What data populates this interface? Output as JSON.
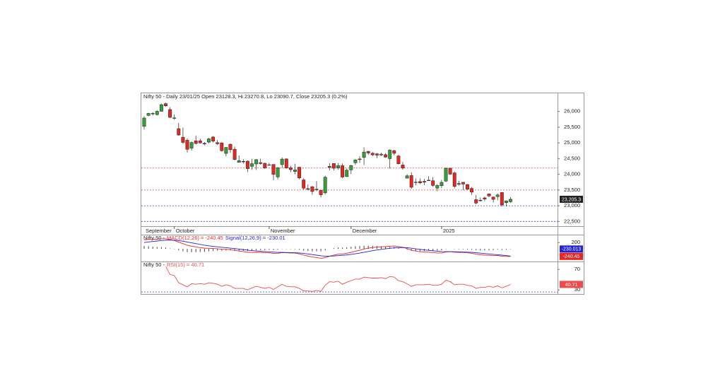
{
  "chart_data": [
    {
      "type": "candlestick",
      "title": "Nifty 50 - Daily 23/01/25 Open 23128.3, Hi 23270.8, Lo 23090.7, Close 23205.3 (0.2%)",
      "categories": [
        "September",
        null,
        null,
        null,
        null,
        null,
        null,
        "October",
        null,
        null,
        null,
        null,
        null,
        null,
        null,
        null,
        null,
        null,
        null,
        null,
        null,
        null,
        null,
        null,
        null,
        null,
        null,
        null,
        null,
        "November",
        null,
        null,
        null,
        null,
        null,
        null,
        null,
        null,
        null,
        null,
        null,
        null,
        null,
        null,
        null,
        null,
        null,
        null,
        "December",
        null,
        null,
        null,
        null,
        null,
        null,
        null,
        null,
        null,
        null,
        null,
        null,
        null,
        null,
        null,
        null,
        null,
        null,
        null,
        null,
        "2025",
        null,
        null,
        null,
        null,
        null,
        null,
        null,
        null,
        null,
        null,
        null,
        null,
        null,
        null,
        null,
        null
      ],
      "open": [
        25526,
        25873,
        25921,
        25900,
        26005,
        26248,
        26061,
        25788,
        25453,
        25181,
        25084,
        24832,
        25065,
        25067,
        24986,
        25024,
        25186,
        25008,
        24999,
        24665,
        24956,
        24798,
        24379,
        24413,
        24418,
        24252,
        24329,
        24372,
        24350,
        24302,
        24315,
        23916,
        24308,
        24490,
        24207,
        24087,
        24225,
        23822,
        23543,
        23605,
        23529,
        23488,
        23411,
        24253,
        24343,
        24204,
        24274,
        23927,
        24140,
        24367,
        24489,
        24539,
        24729,
        24671,
        24652,
        24614,
        24624,
        24498,
        24753,
        24584,
        24297,
        23877,
        23960,
        23739,
        23770,
        23775,
        23802,
        23796,
        23560,
        23638,
        23783,
        24196,
        24045,
        23679,
        23746,
        23675,
        23551,
        23195,
        23165,
        23250,
        23377,
        23277,
        23290,
        23421,
        23099,
        23128.3
      ],
      "high": [
        25849,
        25956,
        25978,
        26032,
        26250,
        26277,
        26135,
        25908,
        25640,
        25485,
        25143,
        25045,
        25234,
        25134,
        25028,
        25159,
        25213,
        25093,
        25020,
        24869,
        24978,
        24882,
        24604,
        24480,
        24440,
        24492,
        24484,
        24498,
        24372,
        24368,
        24316,
        24229,
        24537,
        24503,
        24276,
        24336,
        24242,
        23873,
        23675,
        23630,
        23780,
        23507,
        23956,
        24352,
        24344,
        24354,
        24345,
        24188,
        24302,
        24481,
        24574,
        24857,
        24751,
        24705,
        24677,
        24691,
        24675,
        24792,
        24781,
        24625,
        24394,
        24005,
        24066,
        23869,
        23867,
        23854,
        23938,
        23916,
        23689,
        23822,
        24226,
        24196,
        24089,
        23795,
        23752,
        23690,
        23596,
        23341,
        23264,
        23293,
        23392,
        23292,
        23391,
        23426,
        23169,
        23270.8
      ],
      "low": [
        25426,
        25847,
        25871,
        25872,
        25998,
        26151,
        25795,
        25739,
        25230,
        24966,
        24694,
        24756,
        24947,
        24980,
        24920,
        24980,
        25008,
        24930,
        24728,
        24567,
        24679,
        24445,
        24378,
        24341,
        24074,
        24140,
        24141,
        24307,
        24172,
        24280,
        23817,
        23842,
        24204,
        24180,
        24066,
        24004,
        23839,
        23510,
        23485,
        23350,
        23464,
        23264,
        23359,
        24126,
        24125,
        24145,
        23874,
        23917,
        24009,
        24302,
        24365,
        24295,
        24620,
        24580,
        24511,
        24583,
        24527,
        24180,
        24601,
        24315,
        24150,
        23870,
        23538,
        23647,
        23685,
        23653,
        23800,
        23599,
        23461,
        23562,
        23751,
        23977,
        23551,
        23637,
        23496,
        23503,
        23344,
        23047,
        23135,
        23147,
        23273,
        23100,
        23170,
        22976,
        22981,
        23090.7
      ],
      "close": [
        25791,
        25939,
        25940,
        26004,
        26216,
        26179,
        25811,
        25797,
        25250,
        25015,
        24796,
        25013,
        24981,
        24998,
        24964,
        25128,
        25057,
        24971,
        24750,
        24854,
        24781,
        24472,
        24435,
        24399,
        24181,
        24339,
        24467,
        24341,
        24205,
        24304,
        23995,
        24213,
        24484,
        24199,
        24148,
        24141,
        23883,
        23559,
        23533,
        23453,
        23518,
        23349,
        23907,
        24221,
        24194,
        24275,
        23914,
        24131,
        24276,
        24457,
        24467,
        24708,
        24677,
        24619,
        24610,
        24641,
        24548,
        24768,
        24668,
        24336,
        24198,
        23952,
        23588,
        23753,
        23727,
        23750,
        23813,
        23645,
        23645,
        23743,
        24189,
        24005,
        23616,
        23708,
        23689,
        23527,
        23432,
        23086,
        23176,
        23213,
        23312,
        23203,
        23345,
        23025,
        23155,
        23205.3
      ],
      "up_color": "#35a035",
      "down_color": "#e8261f",
      "ylim": [
        22350,
        26600
      ],
      "yticks": [
        {
          "value": 22500,
          "label": "22,500"
        },
        {
          "value": 23000,
          "label": "23,000"
        },
        {
          "value": 23500,
          "label": "23,500"
        },
        {
          "value": 24000,
          "label": "24,000"
        },
        {
          "value": 24500,
          "label": "24,500"
        },
        {
          "value": 25000,
          "label": "25,000"
        },
        {
          "value": 25500,
          "label": "25,500"
        },
        {
          "value": 26000,
          "label": "26,000"
        }
      ],
      "hlines": [
        {
          "value": 24200,
          "color": "#e8463c"
        },
        {
          "value": 23500,
          "color": "#e8463c"
        },
        {
          "value": 23000,
          "color": "#3c3cf0"
        },
        {
          "value": 22500,
          "color": "#3c3cf0"
        }
      ],
      "last_label": "23,205.3"
    },
    {
      "type": "line",
      "title": "Nifty 50 -",
      "ylim": [
        -380,
        430
      ],
      "yticks": [
        200
      ],
      "series": [
        {
          "name": "MACD(12,26) = -240.45",
          "color": "#e8261f",
          "last_label": "-240.45",
          "values": [
            290,
            300,
            305,
            310,
            320,
            318,
            290,
            265,
            215,
            165,
            115,
            85,
            60,
            40,
            22,
            18,
            12,
            5,
            -10,
            -15,
            -25,
            -50,
            -70,
            -85,
            -110,
            -115,
            -110,
            -115,
            -125,
            -125,
            -145,
            -140,
            -120,
            -125,
            -130,
            -135,
            -160,
            -200,
            -230,
            -260,
            -275,
            -300,
            -280,
            -235,
            -200,
            -170,
            -165,
            -140,
            -110,
            -75,
            -45,
            -5,
            20,
            40,
            55,
            65,
            70,
            85,
            90,
            75,
            50,
            10,
            -45,
            -70,
            -90,
            -100,
            -105,
            -120,
            -130,
            -130,
            -100,
            -90,
            -105,
            -110,
            -115,
            -125,
            -140,
            -170,
            -190,
            -200,
            -205,
            -215,
            -210,
            -235,
            -240,
            -240.45
          ]
        },
        {
          "name": "Signal(12,26,9) = -230.01",
          "color": "#2222dd",
          "last_label": "-230.013",
          "values": [
            200,
            220,
            235,
            250,
            265,
            275,
            278,
            276,
            264,
            244,
            218,
            192,
            166,
            141,
            117,
            97,
            80,
            65,
            50,
            37,
            24,
            9,
            -7,
            -23,
            -41,
            -55,
            -66,
            -76,
            -86,
            -94,
            -104,
            -111,
            -113,
            -116,
            -119,
            -122,
            -130,
            -144,
            -161,
            -181,
            -200,
            -220,
            -232,
            -233,
            -226,
            -215,
            -205,
            -192,
            -176,
            -156,
            -134,
            -108,
            -82,
            -58,
            -35,
            -15,
            2,
            19,
            33,
            41,
            43,
            37,
            20,
            2,
            -16,
            -33,
            -47,
            -62,
            -75,
            -86,
            -89,
            -89,
            -92,
            -96,
            -100,
            -105,
            -112,
            -124,
            -137,
            -150,
            -161,
            -175,
            -188,
            -200,
            -215,
            -230.01
          ]
        }
      ],
      "histogram": {
        "color": "#444444",
        "values": [
          90,
          80,
          70,
          60,
          55,
          43,
          12,
          -11,
          -49,
          -79,
          -103,
          -107,
          -106,
          -101,
          -95,
          -79,
          -68,
          -60,
          -60,
          -52,
          -49,
          -59,
          -63,
          -62,
          -69,
          -60,
          -44,
          -39,
          -39,
          -31,
          -41,
          -29,
          -7,
          -9,
          -11,
          -13,
          -30,
          -56,
          -69,
          -79,
          -75,
          -80,
          -48,
          -2,
          26,
          45,
          40,
          52,
          66,
          81,
          89,
          103,
          102,
          98,
          90,
          80,
          68,
          66,
          57,
          34,
          7,
          -27,
          -65,
          -72,
          -74,
          -67,
          -58,
          -58,
          -55,
          -44,
          -11,
          -1,
          -13,
          -14,
          -15,
          -20,
          -28,
          -46,
          -53,
          -50,
          -44,
          -40,
          -22,
          -35,
          -25,
          -10.44
        ]
      }
    },
    {
      "type": "line",
      "title": "Nifty 50 -",
      "ylim": [
        22,
        84
      ],
      "yticks": [
        70,
        30
      ],
      "hlines": [
        {
          "value": 26,
          "color": "#3c3cf0"
        }
      ],
      "series": [
        {
          "name": "RSI(15) = 40.71",
          "color": "#f04a4a",
          "last_label": "40.71",
          "values": [
            null,
            null,
            null,
            null,
            null,
            76,
            60,
            58,
            44,
            40,
            36,
            42,
            41,
            42,
            41,
            44,
            43,
            41,
            37,
            40,
            38,
            33,
            33,
            33,
            30,
            34,
            37,
            35,
            33,
            35,
            31,
            36,
            41,
            37,
            36,
            36,
            33,
            28,
            28,
            27,
            29,
            27,
            39,
            46,
            45,
            47,
            41,
            45,
            48,
            51,
            51,
            55,
            54,
            53,
            53,
            54,
            52,
            56,
            55,
            48,
            46,
            42,
            37,
            40,
            40,
            40,
            41,
            39,
            39,
            41,
            49,
            46,
            40,
            41,
            41,
            39,
            38,
            33,
            35,
            35,
            37,
            35,
            38,
            34,
            37,
            40.71
          ]
        }
      ]
    }
  ]
}
